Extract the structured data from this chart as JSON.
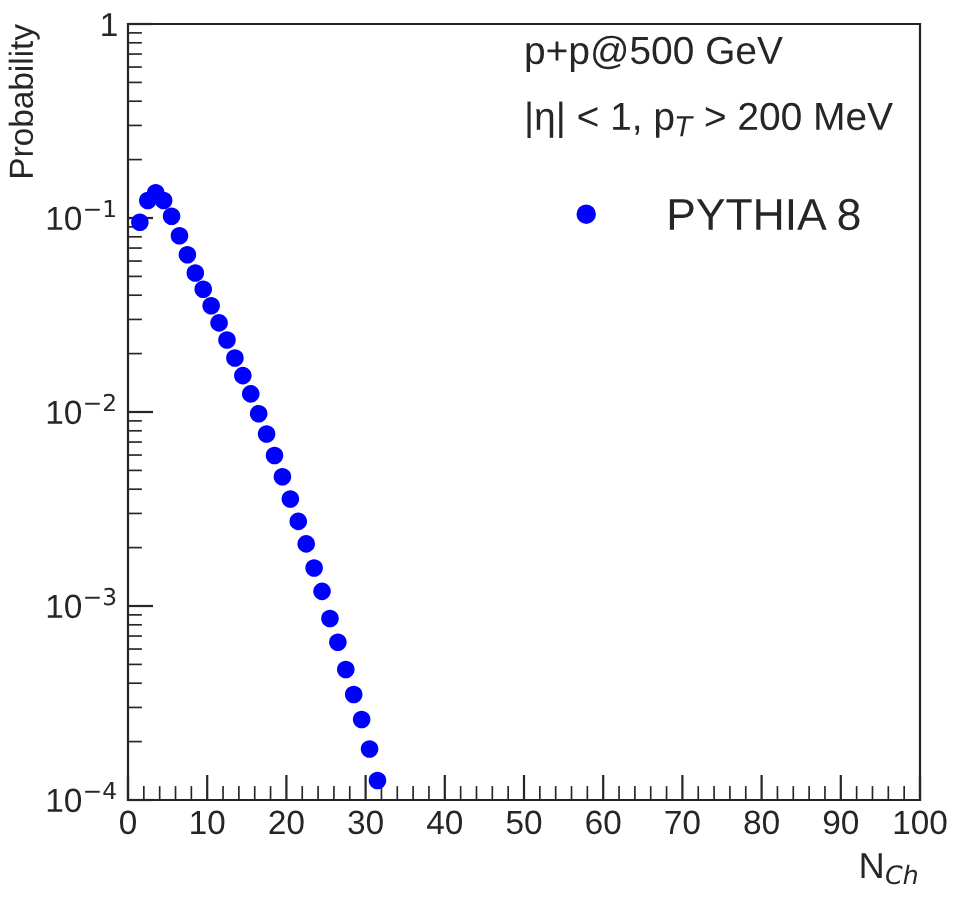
{
  "chart_data": {
    "type": "scatter",
    "xlabel": "N$_{Ch}$",
    "ylabel": "Probability",
    "annotations": [
      "p+p@500 GeV",
      "|η| < 1, p$_{T}$ > 200 MeV"
    ],
    "x": [
      1.5,
      2.5,
      3.5,
      4.5,
      5.5,
      6.5,
      7.5,
      8.5,
      9.5,
      10.5,
      11.5,
      12.5,
      13.5,
      14.5,
      15.5,
      16.5,
      17.5,
      18.5,
      19.5,
      20.5,
      21.5,
      22.5,
      23.5,
      24.5,
      25.5,
      26.5,
      27.5,
      28.5,
      29.5,
      30.5,
      31.5
    ],
    "series": [
      {
        "name": "PYTHIA 8",
        "color": "#0000ff",
        "values": [
          0.095,
          0.123,
          0.135,
          0.123,
          0.102,
          0.081,
          0.0646,
          0.0521,
          0.0429,
          0.0353,
          0.0288,
          0.0235,
          0.019,
          0.0154,
          0.0124,
          0.0098,
          0.0077,
          0.00597,
          0.00464,
          0.00356,
          0.00273,
          0.00209,
          0.00157,
          0.00119,
          0.000863,
          0.00065,
          0.000471,
          0.00035,
          0.00026,
          0.000183,
          0.000126
        ]
      }
    ],
    "log": "y",
    "marker": "circle",
    "legend": "top right",
    "grid": false,
    "xlim": [
      0,
      100
    ],
    "xticks": [
      0,
      10,
      20,
      30,
      40,
      50,
      60,
      70,
      80,
      90,
      100
    ],
    "ylim": [
      0.0001,
      1
    ],
    "yticks": [
      {
        "value": 0.0001,
        "label": "10$^{−4}$"
      },
      {
        "value": 0.001,
        "label": "10$^{−3}$"
      },
      {
        "value": 0.01,
        "label": "10$^{−2}$"
      },
      {
        "value": 0.1,
        "label": "10$^{−1}$"
      },
      1
    ]
  }
}
